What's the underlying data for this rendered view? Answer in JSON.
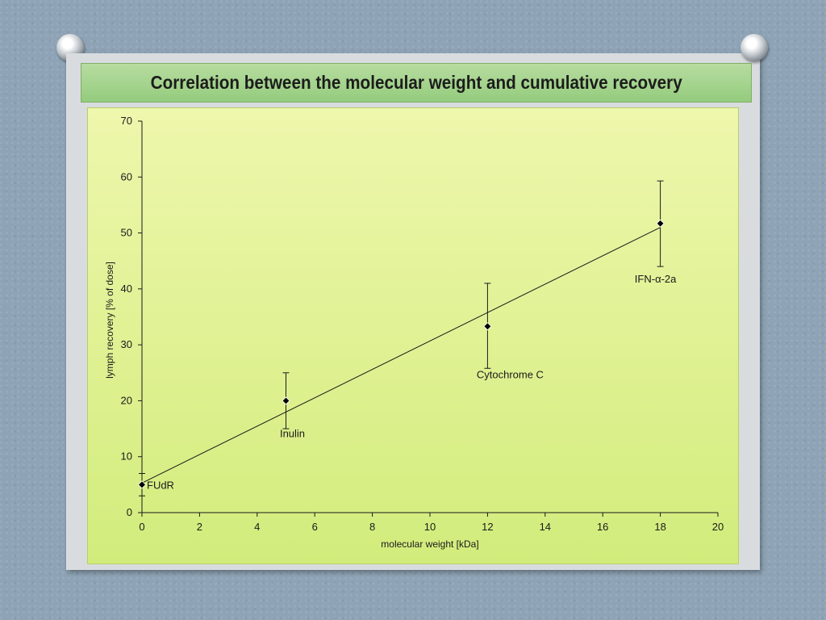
{
  "title": "Correlation between the molecular weight and cumulative recovery",
  "chart_data": {
    "type": "scatter",
    "title": "Correlation between the molecular weight and cumulative recovery",
    "xlabel": "molecular weight [kDa]",
    "ylabel": "lymph recovery [% of dose]",
    "xlim": [
      0,
      20
    ],
    "ylim": [
      0,
      70
    ],
    "xticks": [
      "0",
      "2",
      "4",
      "6",
      "8",
      "10",
      "12",
      "14",
      "16",
      "18",
      "20"
    ],
    "yticks": [
      "0",
      "10",
      "20",
      "30",
      "40",
      "50",
      "60",
      "70"
    ],
    "grid": false,
    "points": [
      {
        "label": "FUdR",
        "x": 0,
        "y": 5,
        "err_low": 3,
        "err_high": 7
      },
      {
        "label": "Inulin",
        "x": 5,
        "y": 20,
        "err_low": 15,
        "err_high": 25
      },
      {
        "label": "Cytochrome C",
        "x": 12,
        "y": 33.3,
        "err_low": 25.8,
        "err_high": 41
      },
      {
        "label": "IFN-α-2a",
        "x": 18,
        "y": 51.7,
        "err_low": 44,
        "err_high": 59.3
      }
    ],
    "trendline": {
      "x": [
        0,
        18
      ],
      "y": [
        5.3,
        51
      ]
    }
  }
}
